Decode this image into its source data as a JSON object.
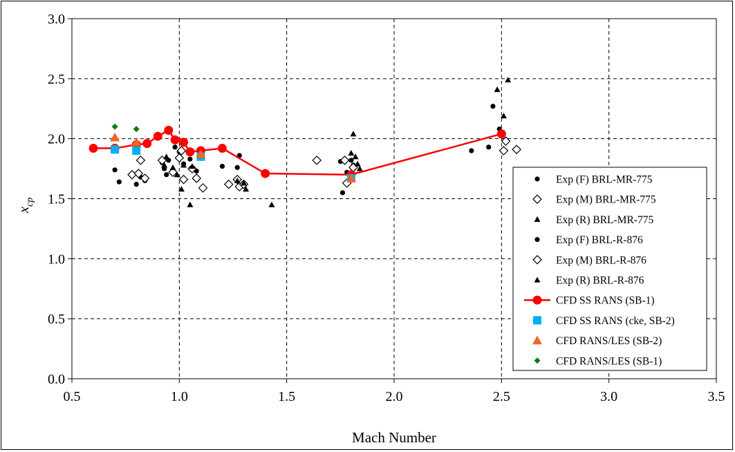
{
  "chart_data": {
    "type": "scatter",
    "title": "",
    "xlabel": "Mach Number",
    "ylabel_main": "x",
    "ylabel_sub": "cp",
    "xlim": [
      0.5,
      3.5
    ],
    "ylim": [
      0.0,
      3.0
    ],
    "x_ticks": [
      "0.5",
      "1.0",
      "1.5",
      "2.0",
      "2.5",
      "3.0",
      "3.5"
    ],
    "y_ticks": [
      "0.0",
      "0.5",
      "1.0",
      "1.5",
      "2.0",
      "2.5",
      "3.0"
    ],
    "grid": true,
    "legend_position": "right",
    "series": [
      {
        "name": "Exp (F) BRL-MR-775",
        "marker": "dot",
        "color": "#000000",
        "points": [
          [
            0.7,
            1.74
          ],
          [
            0.72,
            1.64
          ],
          [
            0.8,
            1.62
          ],
          [
            0.82,
            1.68
          ],
          [
            0.84,
            1.65
          ],
          [
            0.92,
            1.8
          ],
          [
            0.93,
            1.75
          ],
          [
            0.94,
            1.7
          ],
          [
            0.95,
            1.82
          ],
          [
            0.98,
            1.93
          ],
          [
            1.0,
            1.89
          ],
          [
            1.02,
            1.79
          ],
          [
            1.05,
            1.83
          ],
          [
            1.08,
            1.73
          ],
          [
            1.2,
            1.77
          ],
          [
            1.27,
            1.76
          ],
          [
            1.28,
            1.86
          ],
          [
            1.3,
            1.63
          ],
          [
            1.75,
            1.81
          ],
          [
            1.76,
            1.55
          ],
          [
            1.78,
            1.72
          ],
          [
            1.8,
            1.82
          ],
          [
            1.81,
            1.78
          ],
          [
            2.36,
            1.9
          ],
          [
            2.44,
            1.93
          ],
          [
            2.46,
            2.27
          ],
          [
            2.49,
            2.08
          ]
        ]
      },
      {
        "name": "Exp (M) BRL-MR-775",
        "marker": "diamond-open",
        "color": "#000000",
        "points": [
          [
            0.78,
            1.7
          ],
          [
            0.81,
            1.71
          ],
          [
            0.82,
            1.82
          ],
          [
            0.84,
            1.67
          ],
          [
            0.92,
            1.82
          ],
          [
            0.97,
            1.72
          ],
          [
            1.0,
            1.84
          ],
          [
            1.01,
            1.9
          ],
          [
            1.02,
            1.66
          ],
          [
            1.06,
            1.75
          ],
          [
            1.08,
            1.67
          ],
          [
            1.11,
            1.59
          ],
          [
            1.23,
            1.62
          ],
          [
            1.27,
            1.66
          ],
          [
            1.28,
            1.6
          ],
          [
            1.3,
            1.62
          ],
          [
            1.64,
            1.82
          ],
          [
            1.77,
            1.82
          ],
          [
            1.78,
            1.63
          ],
          [
            1.81,
            1.76
          ],
          [
            2.51,
            1.9
          ],
          [
            2.52,
            1.98
          ],
          [
            2.57,
            1.91
          ]
        ]
      },
      {
        "name": "Exp (R) BRL-MR-775",
        "marker": "triangle",
        "color": "#000000",
        "points": [
          [
            0.93,
            1.78
          ],
          [
            0.94,
            1.85
          ],
          [
            0.97,
            1.76
          ],
          [
            0.99,
            1.7
          ],
          [
            1.01,
            1.58
          ],
          [
            1.02,
            1.78
          ],
          [
            1.05,
            1.45
          ],
          [
            1.06,
            1.77
          ],
          [
            1.27,
            1.65
          ],
          [
            1.3,
            1.63
          ],
          [
            1.31,
            1.58
          ],
          [
            1.43,
            1.45
          ],
          [
            1.8,
            1.88
          ],
          [
            1.81,
            2.04
          ],
          [
            1.82,
            1.85
          ],
          [
            1.83,
            1.79
          ],
          [
            1.84,
            1.75
          ],
          [
            2.48,
            2.41
          ],
          [
            2.51,
            2.19
          ],
          [
            2.53,
            2.49
          ]
        ]
      },
      {
        "name": "Exp (F) BRL-R-876",
        "marker": "dot",
        "color": "#000000",
        "points": []
      },
      {
        "name": "Exp (M) BRL-R-876",
        "marker": "diamond-open",
        "color": "#000000",
        "points": []
      },
      {
        "name": "Exp (R) BRL-R-876",
        "marker": "triangle",
        "color": "#000000",
        "points": []
      },
      {
        "name": "CFD SS RANS (SB-1)",
        "marker": "circle-line",
        "color": "#ff0000",
        "points": [
          [
            0.6,
            1.92
          ],
          [
            0.7,
            1.92
          ],
          [
            0.8,
            1.95
          ],
          [
            0.85,
            1.96
          ],
          [
            0.9,
            2.02
          ],
          [
            0.95,
            2.07
          ],
          [
            0.98,
            1.99
          ],
          [
            1.02,
            1.97
          ],
          [
            1.05,
            1.89
          ],
          [
            1.1,
            1.9
          ],
          [
            1.2,
            1.92
          ],
          [
            1.4,
            1.71
          ],
          [
            1.8,
            1.7
          ],
          [
            2.5,
            2.04
          ]
        ]
      },
      {
        "name": "CFD SS RANS (cke, SB-2)",
        "marker": "square",
        "color": "#00b0f0",
        "points": [
          [
            0.7,
            1.91
          ],
          [
            0.8,
            1.9
          ],
          [
            1.1,
            1.85
          ],
          [
            1.8,
            1.67
          ]
        ]
      },
      {
        "name": "CFD RANS/LES (SB-2)",
        "marker": "triangle",
        "color": "#f26522",
        "points": [
          [
            0.7,
            2.01
          ],
          [
            0.8,
            1.97
          ],
          [
            1.1,
            1.87
          ],
          [
            1.8,
            1.67
          ]
        ]
      },
      {
        "name": "CFD RANS/LES (SB-1)",
        "marker": "diamond",
        "color": "#008000",
        "points": [
          [
            0.7,
            2.1
          ],
          [
            0.8,
            2.08
          ]
        ]
      }
    ]
  }
}
